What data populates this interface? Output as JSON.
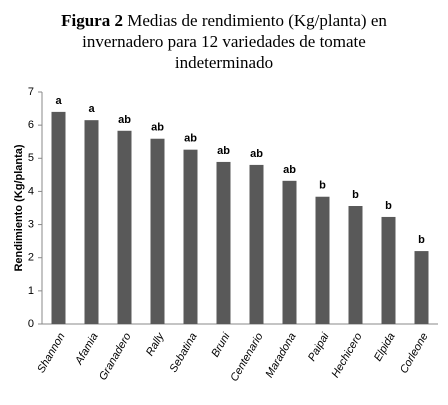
{
  "chart_data": {
    "type": "bar",
    "figure_label": "Figura 2",
    "title": "Medias de rendimiento (Kg/planta) en invernadero para 12 variedades de tomate indeterminado",
    "y_label": "Rendimiento (Kg/planta)",
    "categories": [
      "Shannon",
      "Afamia",
      "Granadero",
      "Rally",
      "Sebatina",
      "Bruni",
      "Centenario",
      "Maradona",
      "Paipai",
      "Hechicero",
      "Elpida",
      "Corleone"
    ],
    "values": [
      6.4,
      6.15,
      5.83,
      5.59,
      5.26,
      4.89,
      4.8,
      4.32,
      3.84,
      3.56,
      3.23,
      2.2
    ],
    "significance": [
      "a",
      "a",
      "ab",
      "ab",
      "ab",
      "ab",
      "ab",
      "ab",
      "b",
      "b",
      "b",
      "b"
    ],
    "color": "#595959",
    "ylim": [
      0,
      7
    ],
    "yticks": [
      0,
      1,
      2,
      3,
      4,
      5,
      6,
      7
    ],
    "grid": false
  }
}
